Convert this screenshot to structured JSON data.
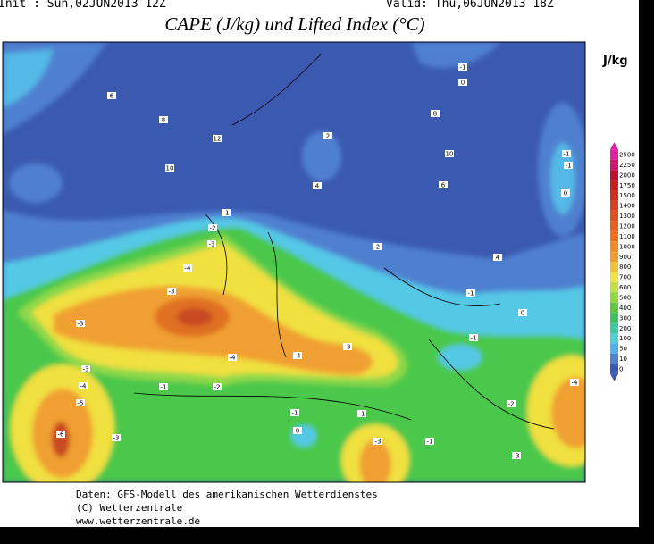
{
  "header": {
    "init": "Init : Sun,02JUN2013 12Z",
    "valid": "Valid: Thu,06JUN2013 18Z",
    "title": "CAPE (J/kg) und Lifted Index (°C)"
  },
  "legend": {
    "unit": "J/kg",
    "levels": [
      {
        "label": "2500",
        "color": "#e020a0"
      },
      {
        "label": "2250",
        "color": "#d01870"
      },
      {
        "label": "2000",
        "color": "#c01030"
      },
      {
        "label": "1750",
        "color": "#c82020"
      },
      {
        "label": "1500",
        "color": "#d03020"
      },
      {
        "label": "1400",
        "color": "#d84020"
      },
      {
        "label": "1300",
        "color": "#e05020"
      },
      {
        "label": "1200",
        "color": "#e86020"
      },
      {
        "label": "1100",
        "color": "#f07020"
      },
      {
        "label": "1000",
        "color": "#f08828"
      },
      {
        "label": "900",
        "color": "#f0a030"
      },
      {
        "label": "800",
        "color": "#f0c038"
      },
      {
        "label": "700",
        "color": "#f0e040"
      },
      {
        "label": "600",
        "color": "#c0e040"
      },
      {
        "label": "500",
        "color": "#90d840"
      },
      {
        "label": "400",
        "color": "#60c840"
      },
      {
        "label": "300",
        "color": "#40c060"
      },
      {
        "label": "200",
        "color": "#40c8a0"
      },
      {
        "label": "100",
        "color": "#50d0d8"
      },
      {
        "label": "50",
        "color": "#50b0e8"
      },
      {
        "label": "10",
        "color": "#5080d0"
      },
      {
        "label": "0",
        "color": "#3858b0"
      }
    ]
  },
  "map": {
    "contour_labels": [
      "-1",
      "0",
      "6",
      "8",
      "12",
      "10",
      "2",
      "4",
      "8",
      "10",
      "6",
      "2",
      "4",
      "-1",
      "-1",
      "0",
      "-1",
      "-2",
      "-3",
      "-4",
      "-3",
      "-3",
      "-4",
      "-4",
      "-3",
      "-1",
      "-1",
      "0",
      "-3",
      "-4",
      "-5",
      "-6",
      "-3",
      "-1",
      "-2",
      "-1",
      "-3",
      "-1",
      "-2",
      "-4",
      "-3",
      "0",
      "-1"
    ]
  },
  "footer": {
    "lines": [
      "Daten: GFS-Modell des amerikanischen Wetterdienstes",
      "(C) Wetterzentrale",
      "www.wetterzentrale.de"
    ]
  }
}
